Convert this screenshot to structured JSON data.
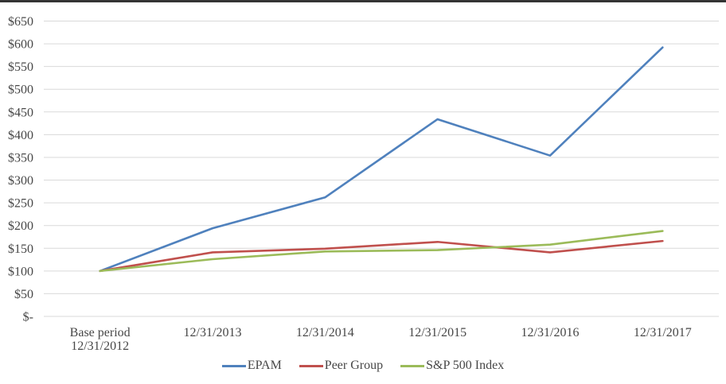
{
  "chart_data": {
    "type": "line",
    "title": "",
    "categories": [
      "Base period\n12/31/2012",
      "12/31/2013",
      "12/31/2014",
      "12/31/2015",
      "12/31/2016",
      "12/31/2017"
    ],
    "series": [
      {
        "name": "EPAM",
        "color": "#4F81BD",
        "values": [
          100,
          194,
          262,
          434,
          354,
          592
        ]
      },
      {
        "name": "Peer Group",
        "color": "#C0504D",
        "values": [
          100,
          141,
          149,
          164,
          141,
          166
        ]
      },
      {
        "name": "S&P 500 Index",
        "color": "#9BBB59",
        "values": [
          100,
          126,
          143,
          146,
          158,
          188
        ]
      }
    ],
    "y_axis": {
      "min": 0,
      "max": 650,
      "step": 50,
      "tick_labels": [
        "$-",
        "$50",
        "$100",
        "$150",
        "$200",
        "$250",
        "$300",
        "$350",
        "$400",
        "$450",
        "$500",
        "$550",
        "$600",
        "$650"
      ]
    },
    "x_axis": {
      "label": ""
    },
    "grid": true,
    "gridline_color": "#d9d9d9",
    "legend_position": "bottom-center",
    "background_color": "#ffffff",
    "top_border_color": "#343434"
  }
}
